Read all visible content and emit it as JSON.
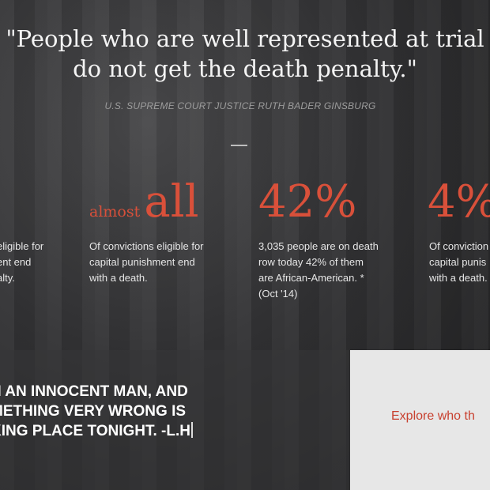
{
  "quote": {
    "line1": "\"People who are well represented at trial",
    "line2": "do not get the death penalty.\"",
    "attribution": "U.S. SUPREME COURT JUSTICE RUTH BADER GINSBURG"
  },
  "stats": [
    {
      "desc": "eligible for\nent end\nalty."
    },
    {
      "prefix": "almost",
      "value": "all",
      "desc": "Of convictions eligible for\ncapital punishment end\nwith a death."
    },
    {
      "value": "42%",
      "desc": "3,035 people are on death\nrow today 42% of them\nare African-American. *\n(Oct '14)"
    },
    {
      "value": "4%",
      "desc": "Of conviction\ncapital punis\nwith a death."
    }
  ],
  "bottom": {
    "quote": "N AN INNOCENT MAN, AND\nMETHING VERY WRONG IS\nKING PLACE TONIGHT. -L.H",
    "explore": "Explore who th"
  },
  "colors": {
    "accent": "#d9503a",
    "link": "#c8402f"
  }
}
